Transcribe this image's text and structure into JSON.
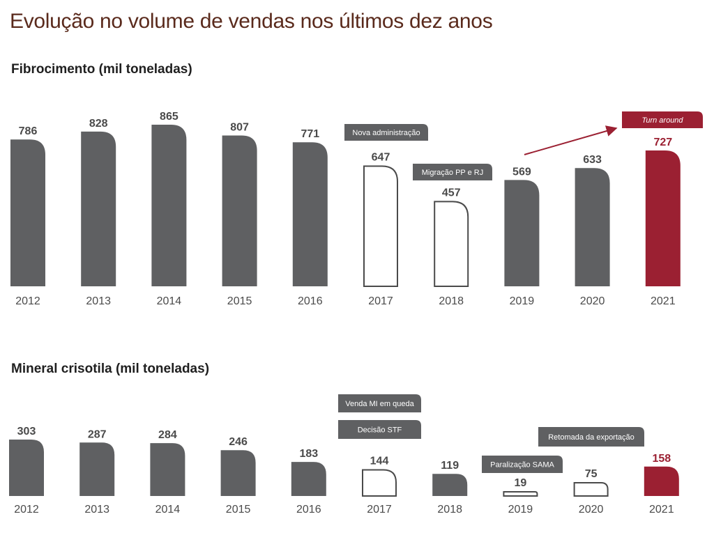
{
  "page_title": "Evolução no volume de vendas nos últimos dez anos",
  "colors": {
    "solid": "#5f6062",
    "highlight": "#9b2032",
    "outline": "#4a4a4a",
    "title": "#5a2a1c"
  },
  "chart_data": [
    {
      "type": "bar",
      "title": "Fibrocimento (mil toneladas)",
      "categories": [
        "2012",
        "2013",
        "2014",
        "2015",
        "2016",
        "2017",
        "2018",
        "2019",
        "2020",
        "2021"
      ],
      "values": [
        786,
        828,
        865,
        807,
        771,
        647,
        457,
        569,
        633,
        727
      ],
      "styles": [
        "solid",
        "solid",
        "solid",
        "solid",
        "solid",
        "outline",
        "outline",
        "solid",
        "solid",
        "highlight"
      ],
      "annotations": [
        {
          "text": "Nova administração",
          "category": "2017",
          "style": "dark"
        },
        {
          "text": "Migração PP e RJ",
          "category": "2018",
          "style": "dark"
        },
        {
          "text": "Turn around",
          "category": "2021",
          "style": "highlight"
        }
      ],
      "trend_arrow": {
        "from": "2019",
        "to": "2021"
      },
      "grid": false,
      "legend": "none"
    },
    {
      "type": "bar",
      "title": "Mineral crisotila (mil toneladas)",
      "categories": [
        "2012",
        "2013",
        "2014",
        "2015",
        "2016",
        "2017",
        "2018",
        "2019",
        "2020",
        "2021"
      ],
      "values": [
        303,
        287,
        284,
        246,
        183,
        144,
        119,
        19,
        75,
        158
      ],
      "styles": [
        "solid",
        "solid",
        "solid",
        "solid",
        "solid",
        "outline",
        "solid",
        "outline",
        "outline",
        "highlight"
      ],
      "annotations": [
        {
          "text": "Venda MI em queda",
          "category": "2017",
          "style": "dark"
        },
        {
          "text": "Decisão STF",
          "category": "2017",
          "style": "dark"
        },
        {
          "text": "Paralização SAMA",
          "category": "2019",
          "style": "dark"
        },
        {
          "text": "Retomada da exportação",
          "category": "2020",
          "style": "dark"
        }
      ],
      "grid": false,
      "legend": "none"
    }
  ]
}
